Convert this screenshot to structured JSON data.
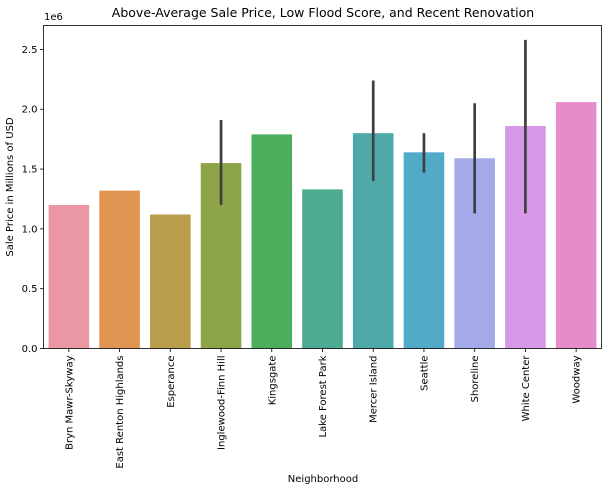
{
  "chart_data": {
    "type": "bar",
    "title": "Above-Average Sale Price, Low Flood Score, and Recent Renovation",
    "xlabel": "Neighborhood",
    "ylabel": "Sale Price in Millions of USD",
    "offset_label": "1e6",
    "ylim": [
      0,
      2.7
    ],
    "yticks": [
      0.0,
      0.5,
      1.0,
      1.5,
      2.0,
      2.5
    ],
    "ytick_labels": [
      "0.0",
      "0.5",
      "1.0",
      "1.5",
      "2.0",
      "2.5"
    ],
    "grid": false,
    "categories": [
      "Bryn Mawr-Skyway",
      "East Renton Highlands",
      "Esperance",
      "Inglewood-Finn Hill",
      "Kingsgate",
      "Lake Forest Park",
      "Mercer Island",
      "Seattle",
      "Shoreline",
      "White Center",
      "Woodway"
    ],
    "values": [
      1.2,
      1.32,
      1.12,
      1.55,
      1.79,
      1.33,
      1.8,
      1.64,
      1.59,
      1.86,
      2.06
    ],
    "error_low": [
      null,
      null,
      null,
      1.2,
      null,
      null,
      1.4,
      1.47,
      1.13,
      1.13,
      null
    ],
    "error_high": [
      null,
      null,
      null,
      1.91,
      null,
      null,
      2.24,
      1.8,
      2.05,
      2.58,
      null
    ],
    "colors": [
      "#ea96a3",
      "#e09451",
      "#b99d4b",
      "#8da548",
      "#4bae5c",
      "#4cab90",
      "#4eaaa8",
      "#52aac9",
      "#a4aae9",
      "#d698e7",
      "#e78ccb"
    ]
  }
}
